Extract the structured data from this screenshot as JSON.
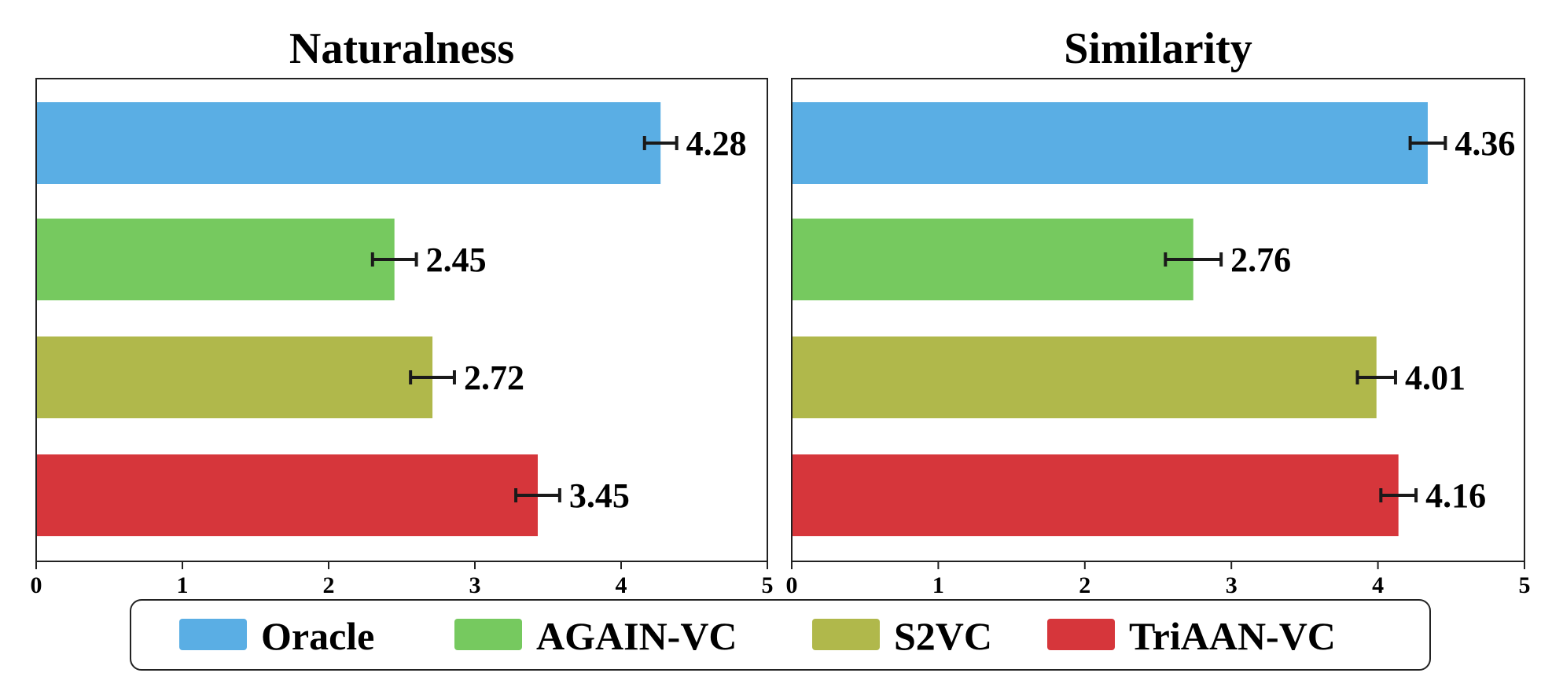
{
  "chart_data": [
    {
      "type": "bar",
      "orientation": "horizontal",
      "title": "Naturalness",
      "categories": [
        "Oracle",
        "AGAIN-VC",
        "S2VC",
        "TriAAN-VC"
      ],
      "values": [
        4.28,
        2.45,
        2.72,
        3.45
      ],
      "value_labels": [
        "4.28",
        "2.45",
        "2.72",
        "3.45"
      ],
      "bar_ends": [
        4.27,
        2.45,
        2.71,
        3.43
      ],
      "error": [
        0.11,
        0.15,
        0.15,
        0.15
      ],
      "xlim": [
        0,
        5
      ],
      "xticks": [
        "0",
        "1",
        "2",
        "3",
        "4",
        "5"
      ],
      "grid": false
    },
    {
      "type": "bar",
      "orientation": "horizontal",
      "title": "Similarity",
      "categories": [
        "Oracle",
        "AGAIN-VC",
        "S2VC",
        "TriAAN-VC"
      ],
      "values": [
        4.36,
        2.76,
        4.01,
        4.16
      ],
      "value_labels": [
        "4.36",
        "2.76",
        "4.01",
        "4.16"
      ],
      "bar_ends": [
        4.34,
        2.74,
        3.99,
        4.14
      ],
      "error": [
        0.12,
        0.19,
        0.13,
        0.12
      ],
      "xlim": [
        0,
        5
      ],
      "xticks": [
        "0",
        "1",
        "2",
        "3",
        "4",
        "5"
      ],
      "grid": false
    }
  ],
  "legend": {
    "placement": "bottom",
    "items": [
      {
        "label": "Oracle",
        "color": "#5aaee4"
      },
      {
        "label": "AGAIN-VC",
        "color": "#76c95f"
      },
      {
        "label": "S2VC",
        "color": "#b0b84b"
      },
      {
        "label": "TriAAN-VC",
        "color": "#d6363b"
      }
    ]
  }
}
